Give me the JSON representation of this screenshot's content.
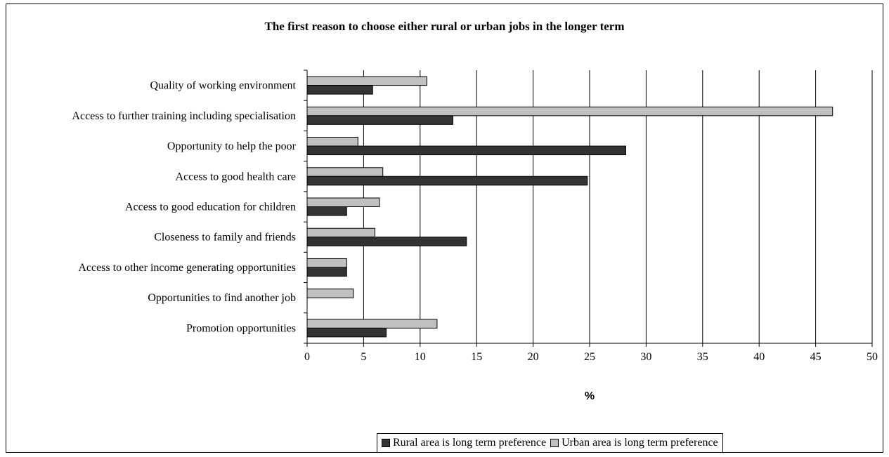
{
  "colors": {
    "rural": "#333333",
    "urban": "#c0c0c0"
  },
  "chart_data": {
    "type": "bar",
    "orientation": "horizontal",
    "title": "The first reason to choose either rural or urban jobs in the longer term",
    "xlabel": "%",
    "ylabel": "",
    "xlim": [
      0,
      50
    ],
    "xticks": [
      "0",
      "5",
      "10",
      "15",
      "20",
      "25",
      "30",
      "35",
      "40",
      "45",
      "50"
    ],
    "grid": "vertical",
    "legend_position": "bottom",
    "categories": [
      "Quality of working environment",
      "Access to further training including specialisation",
      "Opportunity to help the poor",
      "Access to good health care",
      "Access to good education for children",
      "Closeness to family and friends",
      "Access to other income generating opportunities",
      "Opportunities to find another job",
      "Promotion opportunities"
    ],
    "series": [
      {
        "name": "Rural area is long term preference",
        "values": [
          5.8,
          12.9,
          28.2,
          24.8,
          3.5,
          14.1,
          3.5,
          0,
          7.0
        ]
      },
      {
        "name": "Urban area is long term preference",
        "values": [
          10.6,
          46.5,
          4.5,
          6.7,
          6.4,
          6.0,
          3.5,
          4.1,
          11.5
        ]
      }
    ]
  }
}
